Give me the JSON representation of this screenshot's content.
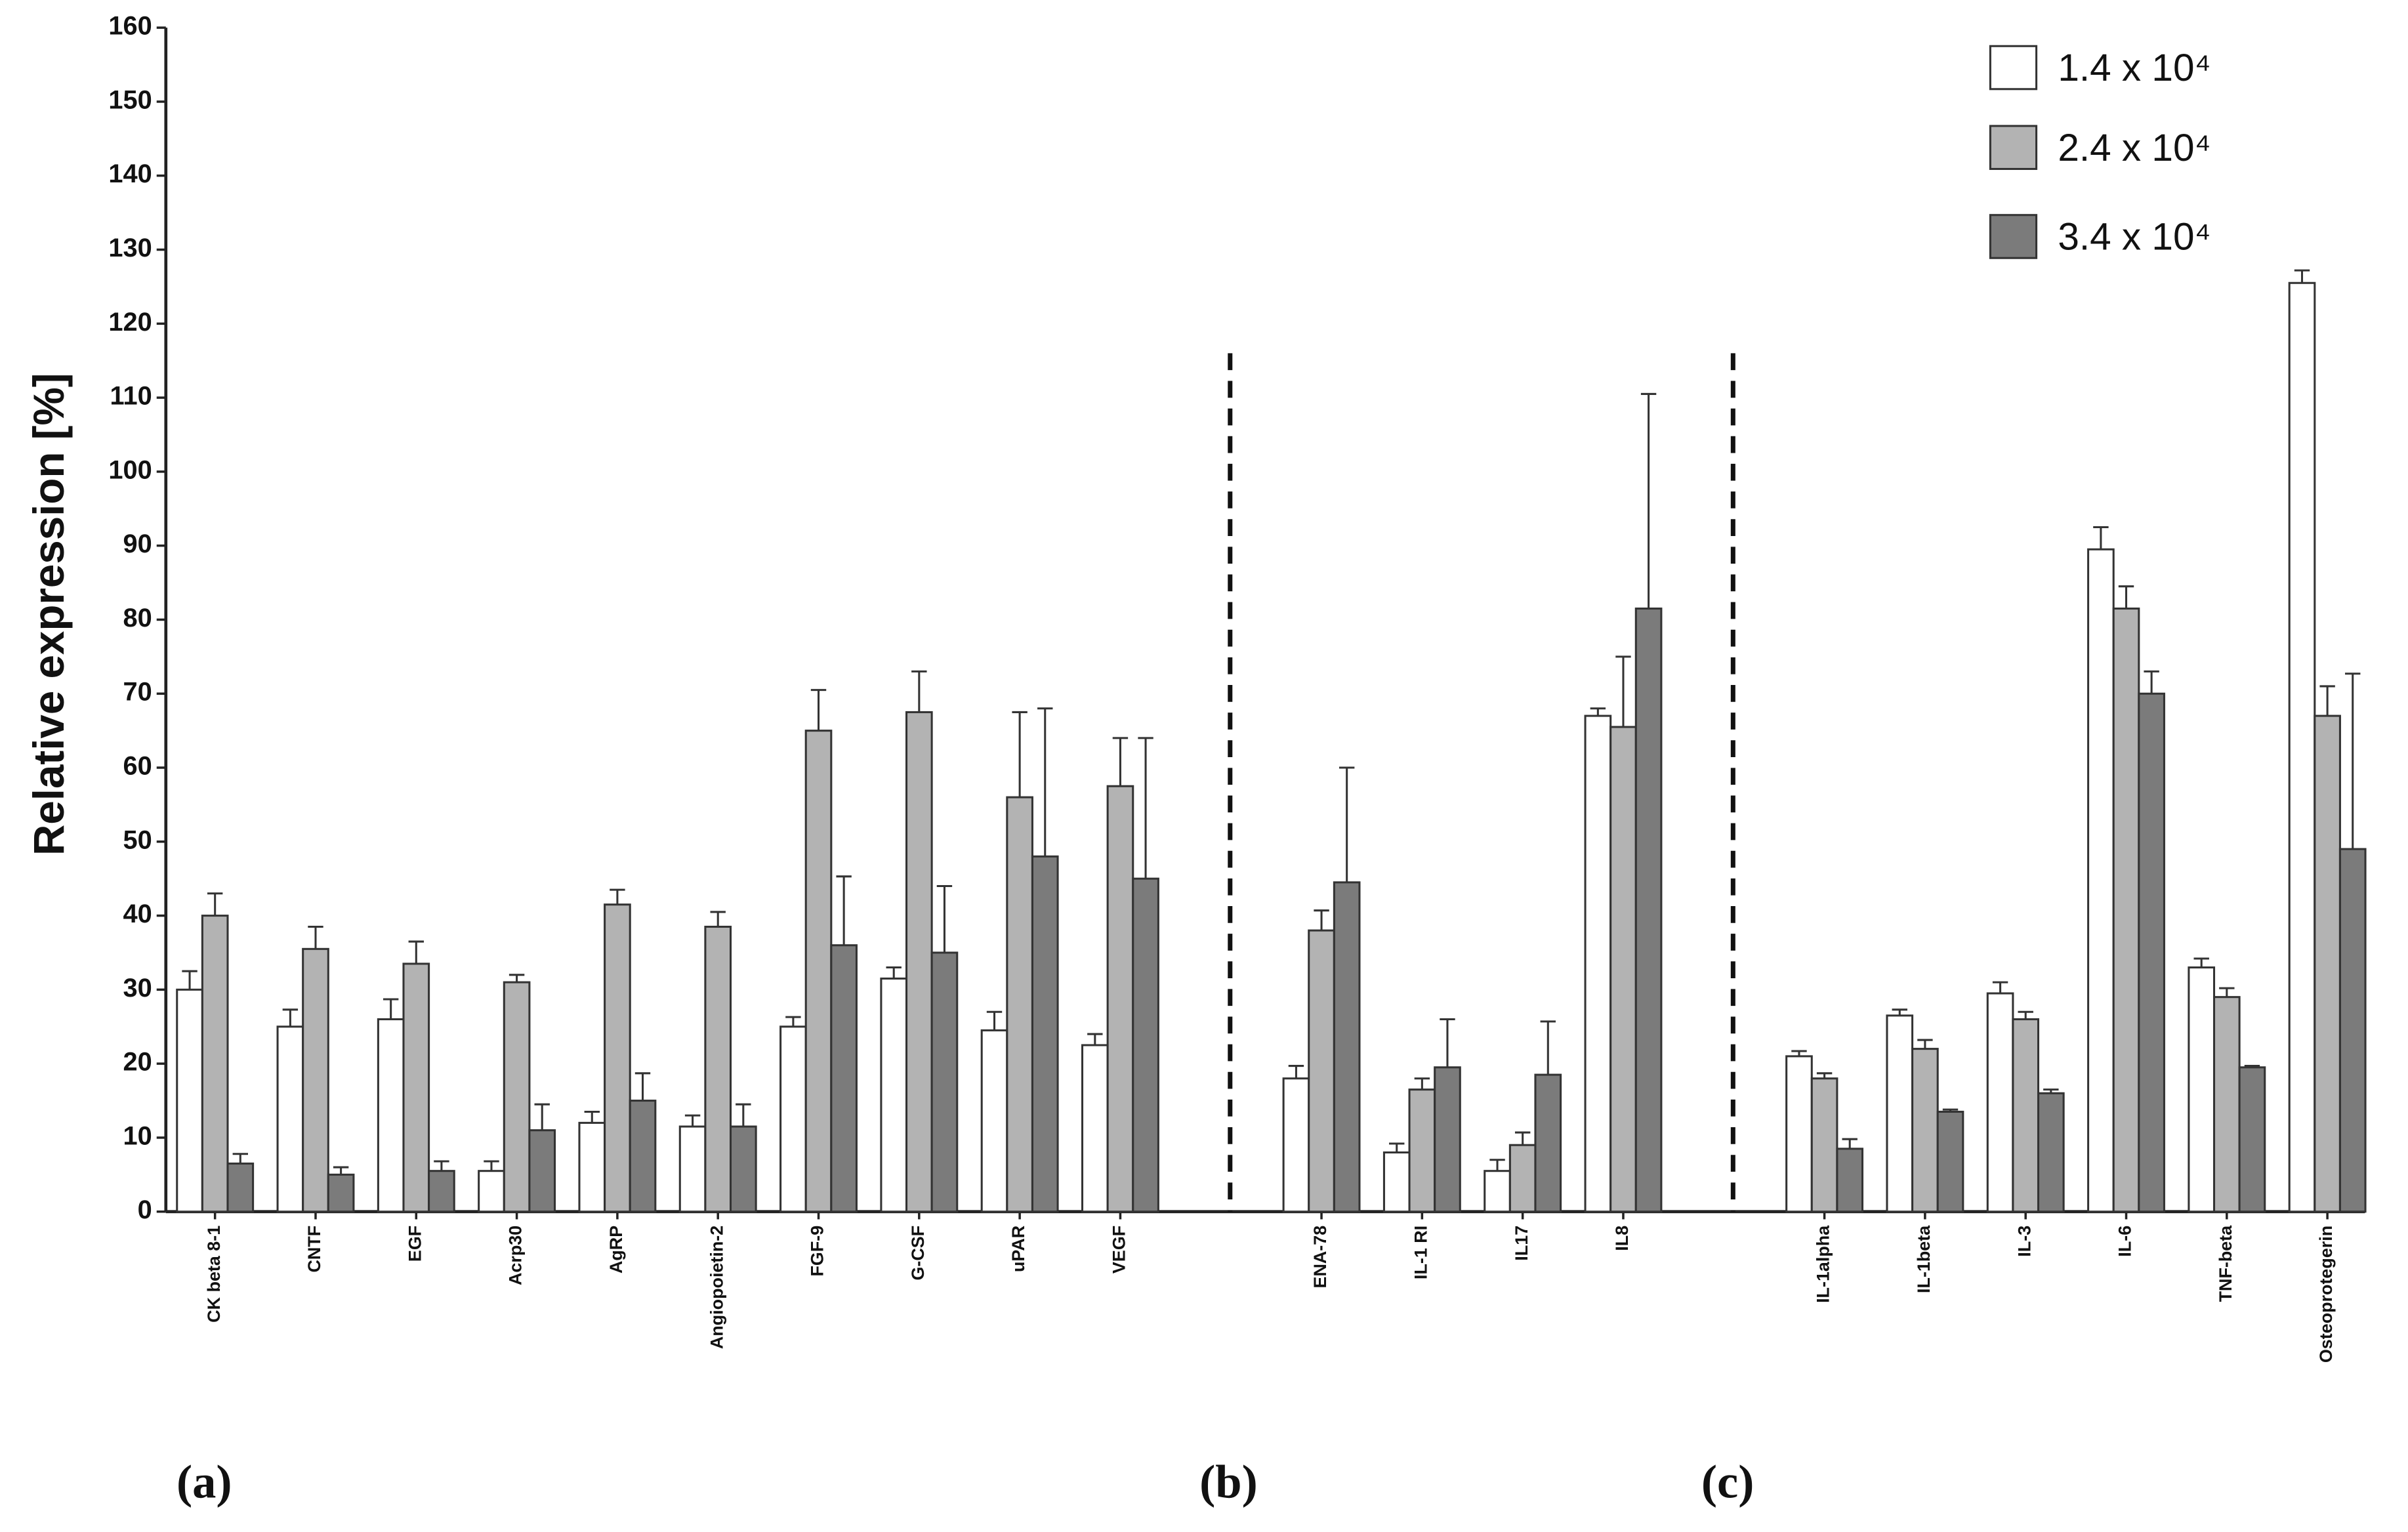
{
  "chart_data": {
    "type": "bar",
    "y_label": "Relative expression [%]",
    "categories": [
      "CK beta 8-1",
      "CNTF",
      "EGF",
      "Acrp30",
      "AgRP",
      "Angiopoietin-2",
      "FGF-9",
      "G-CSF",
      "uPAR",
      "VEGF",
      null,
      "ENA-78",
      "IL-1 RI",
      "IL17",
      "IL8",
      null,
      "IL-1alpha",
      "IL-1beta",
      "IL-3",
      "IL-6",
      "TNF-beta",
      "Osteoprotegerin"
    ],
    "series": [
      {
        "name": "1.4 x 10⁴",
        "color": "#ffffff",
        "values": [
          30,
          25,
          26,
          5.5,
          12,
          11.5,
          25,
          31.5,
          24.5,
          22.5,
          null,
          18,
          8,
          5.5,
          67,
          null,
          21,
          26.5,
          29.5,
          89.5,
          33,
          125.5
        ],
        "errors": [
          2.5,
          2.3,
          2.7,
          1.3,
          1.5,
          1.5,
          1.3,
          1.5,
          2.5,
          1.5,
          null,
          1.7,
          1.2,
          1.5,
          1,
          null,
          0.7,
          0.8,
          1.5,
          3,
          1.2,
          1.7
        ]
      },
      {
        "name": "2.4 x 10⁴",
        "color": "#b3b3b3",
        "values": [
          40,
          35.5,
          33.5,
          31,
          41.5,
          38.5,
          65,
          67.5,
          56,
          57.5,
          null,
          38,
          16.5,
          9,
          65.5,
          null,
          18,
          22,
          26,
          81.5,
          29,
          67
        ],
        "errors": [
          3,
          3,
          3,
          1,
          2,
          2,
          5.5,
          5.5,
          11.5,
          6.5,
          null,
          2.7,
          1.5,
          1.7,
          9.5,
          null,
          0.7,
          1.2,
          1,
          3,
          1.2,
          4
        ]
      },
      {
        "name": "3.4 x 10⁴",
        "color": "#7b7b7b",
        "values": [
          6.5,
          5,
          5.5,
          11,
          15,
          11.5,
          36,
          35,
          48,
          45,
          null,
          44.5,
          19.5,
          18.5,
          81.5,
          null,
          8.5,
          13.5,
          16,
          70,
          19.5,
          49
        ],
        "errors": [
          1.3,
          1,
          1.3,
          3.5,
          3.7,
          3,
          9.3,
          9,
          20,
          19,
          null,
          15.5,
          6.5,
          7.2,
          29,
          null,
          1.3,
          0.3,
          0.5,
          3,
          0.2,
          23.7
        ]
      }
    ],
    "ylim": [
      0,
      160
    ],
    "yticks": [
      0,
      10,
      20,
      30,
      40,
      50,
      60,
      70,
      80,
      90,
      100,
      110,
      120,
      130,
      140,
      150,
      160
    ],
    "legend": "top-right",
    "annotations": [
      "(a)",
      "(b)",
      "(c)"
    ]
  }
}
